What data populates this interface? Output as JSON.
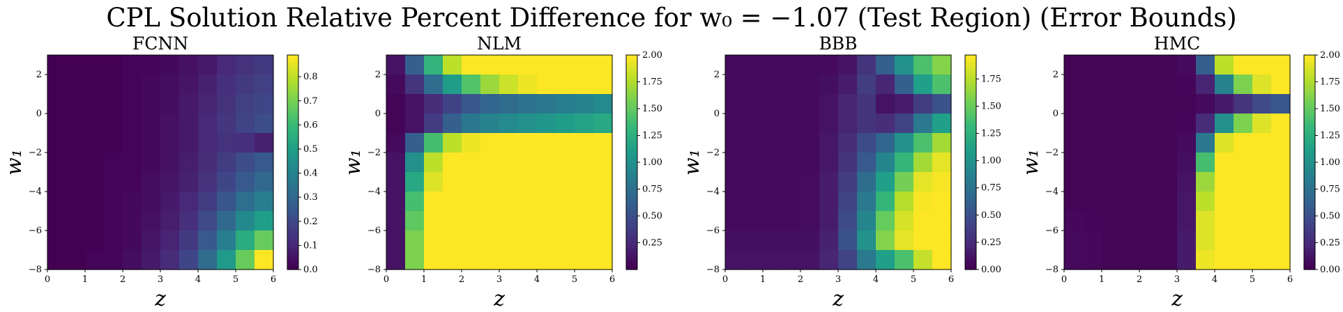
{
  "figure": {
    "title": "CPL Solution Relative Percent Difference for w₀ = −1.07 (Test Region) (Error Bounds)"
  },
  "colormap": [
    "#440154",
    "#482878",
    "#3e4989",
    "#31688e",
    "#26828e",
    "#1f9e89",
    "#35b779",
    "#6ece58",
    "#b5de2b",
    "#fde725"
  ],
  "chart_data": [
    {
      "type": "heatmap",
      "title": "FCNN",
      "xlabel": "z",
      "ylabel": "w₁",
      "xlim": [
        0,
        6
      ],
      "ylim": [
        -8,
        3
      ],
      "xticks": [
        "0",
        "1",
        "2",
        "3",
        "4",
        "5",
        "6"
      ],
      "yticks": [
        "2",
        "0",
        "−2",
        "−4",
        "−6",
        "−8"
      ],
      "colorbar": {
        "min": 0,
        "max": 0.89,
        "ticks": [
          "0.0",
          "0.1",
          "0.2",
          "0.3",
          "0.4",
          "0.5",
          "0.6",
          "0.7",
          "0.8"
        ]
      },
      "values": [
        [
          0.0,
          0.0,
          0.0,
          0.0,
          0.01,
          0.01,
          0.02,
          0.04,
          0.06,
          0.1,
          0.13,
          0.15
        ],
        [
          0.0,
          0.0,
          0.0,
          0.0,
          0.01,
          0.02,
          0.03,
          0.05,
          0.08,
          0.12,
          0.15,
          0.17
        ],
        [
          0.0,
          0.0,
          0.0,
          0.0,
          0.01,
          0.02,
          0.03,
          0.06,
          0.09,
          0.13,
          0.17,
          0.19
        ],
        [
          0.0,
          0.0,
          0.0,
          0.0,
          0.01,
          0.02,
          0.04,
          0.06,
          0.1,
          0.14,
          0.18,
          0.21
        ],
        [
          0.0,
          0.0,
          0.0,
          0.0,
          0.01,
          0.02,
          0.04,
          0.06,
          0.1,
          0.13,
          0.12,
          0.08
        ],
        [
          0.0,
          0.0,
          0.0,
          0.01,
          0.01,
          0.02,
          0.04,
          0.07,
          0.11,
          0.16,
          0.21,
          0.25
        ],
        [
          0.0,
          0.0,
          0.0,
          0.01,
          0.01,
          0.03,
          0.05,
          0.08,
          0.13,
          0.19,
          0.25,
          0.3
        ],
        [
          0.0,
          0.0,
          0.0,
          0.01,
          0.02,
          0.03,
          0.06,
          0.1,
          0.16,
          0.24,
          0.32,
          0.38
        ],
        [
          0.0,
          0.0,
          0.0,
          0.01,
          0.02,
          0.04,
          0.07,
          0.12,
          0.2,
          0.3,
          0.42,
          0.5
        ],
        [
          0.0,
          0.0,
          0.0,
          0.01,
          0.02,
          0.05,
          0.09,
          0.15,
          0.25,
          0.38,
          0.55,
          0.68
        ],
        [
          0.0,
          0.0,
          0.01,
          0.01,
          0.03,
          0.06,
          0.11,
          0.19,
          0.31,
          0.48,
          0.68,
          0.89
        ]
      ]
    },
    {
      "type": "heatmap",
      "title": "NLM",
      "xlabel": "z",
      "ylabel": "w₁",
      "xlim": [
        0,
        6
      ],
      "ylim": [
        -8,
        3
      ],
      "xticks": [
        "0",
        "1",
        "2",
        "3",
        "4",
        "5",
        "6"
      ],
      "yticks": [
        "2",
        "0",
        "−2",
        "−4",
        "−6",
        "−8"
      ],
      "colorbar": {
        "min": 0,
        "max": 2.0,
        "ticks": [
          "0.25",
          "0.50",
          "0.75",
          "1.00",
          "1.25",
          "1.50",
          "1.75",
          "2.00"
        ]
      },
      "values": [
        [
          0.1,
          0.6,
          1.3,
          1.8,
          2.0,
          2.0,
          2.0,
          2.0,
          2.0,
          2.0,
          2.0,
          2.0
        ],
        [
          0.05,
          0.3,
          0.7,
          1.1,
          1.45,
          1.7,
          1.85,
          1.95,
          2.0,
          2.0,
          2.0,
          2.0
        ],
        [
          0.02,
          0.1,
          0.25,
          0.4,
          0.55,
          0.65,
          0.7,
          0.75,
          0.8,
          0.85,
          0.9,
          0.95
        ],
        [
          0.02,
          0.1,
          0.35,
          0.6,
          0.8,
          0.9,
          0.95,
          1.0,
          1.05,
          1.1,
          1.15,
          1.2
        ],
        [
          0.05,
          0.6,
          1.4,
          1.8,
          1.95,
          2.0,
          2.0,
          2.0,
          2.0,
          2.0,
          2.0,
          2.0
        ],
        [
          0.1,
          1.0,
          1.8,
          2.0,
          2.0,
          2.0,
          2.0,
          2.0,
          2.0,
          2.0,
          2.0,
          2.0
        ],
        [
          0.1,
          1.2,
          1.9,
          2.0,
          2.0,
          2.0,
          2.0,
          2.0,
          2.0,
          2.0,
          2.0,
          2.0
        ],
        [
          0.1,
          1.4,
          2.0,
          2.0,
          2.0,
          2.0,
          2.0,
          2.0,
          2.0,
          2.0,
          2.0,
          2.0
        ],
        [
          0.1,
          1.5,
          2.0,
          2.0,
          2.0,
          2.0,
          2.0,
          2.0,
          2.0,
          2.0,
          2.0,
          2.0
        ],
        [
          0.1,
          1.6,
          2.0,
          2.0,
          2.0,
          2.0,
          2.0,
          2.0,
          2.0,
          2.0,
          2.0,
          2.0
        ],
        [
          0.1,
          1.6,
          2.0,
          2.0,
          2.0,
          2.0,
          2.0,
          2.0,
          2.0,
          2.0,
          2.0,
          2.0
        ]
      ]
    },
    {
      "type": "heatmap",
      "title": "BBB",
      "xlabel": "z",
      "ylabel": "w₁",
      "xlim": [
        0,
        6
      ],
      "ylim": [
        -8,
        3
      ],
      "xticks": [
        "0",
        "1",
        "2",
        "3",
        "4",
        "5",
        "6"
      ],
      "yticks": [
        "2",
        "0",
        "−2",
        "−4",
        "−6",
        "−8"
      ],
      "colorbar": {
        "min": 0,
        "max": 1.97,
        "ticks": [
          "0.00",
          "0.25",
          "0.50",
          "0.75",
          "1.00",
          "1.25",
          "1.50",
          "1.75"
        ]
      },
      "values": [
        [
          0.05,
          0.05,
          0.05,
          0.05,
          0.05,
          0.05,
          0.1,
          0.3,
          0.6,
          1.0,
          1.4,
          1.6
        ],
        [
          0.05,
          0.05,
          0.05,
          0.05,
          0.05,
          0.08,
          0.15,
          0.35,
          0.2,
          0.6,
          1.1,
          1.4
        ],
        [
          0.05,
          0.05,
          0.05,
          0.05,
          0.05,
          0.1,
          0.2,
          0.3,
          0.1,
          0.15,
          0.35,
          0.5
        ],
        [
          0.05,
          0.05,
          0.05,
          0.05,
          0.05,
          0.1,
          0.2,
          0.3,
          0.25,
          0.4,
          0.8,
          1.1
        ],
        [
          0.05,
          0.05,
          0.05,
          0.05,
          0.05,
          0.12,
          0.25,
          0.45,
          0.65,
          1.0,
          1.4,
          1.7
        ],
        [
          0.05,
          0.05,
          0.05,
          0.05,
          0.05,
          0.12,
          0.3,
          0.55,
          0.9,
          1.3,
          1.7,
          1.9
        ],
        [
          0.05,
          0.05,
          0.05,
          0.05,
          0.06,
          0.15,
          0.35,
          0.7,
          1.1,
          1.55,
          1.9,
          1.95
        ],
        [
          0.05,
          0.05,
          0.05,
          0.05,
          0.06,
          0.15,
          0.4,
          0.8,
          1.3,
          1.75,
          1.95,
          1.97
        ],
        [
          0.05,
          0.05,
          0.05,
          0.05,
          0.06,
          0.15,
          0.45,
          0.9,
          1.5,
          1.85,
          1.97,
          1.97
        ],
        [
          0.08,
          0.08,
          0.08,
          0.08,
          0.08,
          0.18,
          0.5,
          1.0,
          1.6,
          1.9,
          1.97,
          1.97
        ],
        [
          0.1,
          0.1,
          0.1,
          0.1,
          0.1,
          0.2,
          0.4,
          0.8,
          1.1,
          1.4,
          1.8,
          1.97
        ]
      ]
    },
    {
      "type": "heatmap",
      "title": "HMC",
      "xlabel": "z",
      "ylabel": "w₁",
      "xlim": [
        0,
        6
      ],
      "ylim": [
        -8,
        3
      ],
      "xticks": [
        "0",
        "1",
        "2",
        "3",
        "4",
        "5",
        "6"
      ],
      "yticks": [
        "2",
        "0",
        "−2",
        "−4",
        "−6",
        "−8"
      ],
      "colorbar": {
        "min": 0,
        "max": 2.0,
        "ticks": [
          "0.00",
          "0.25",
          "0.50",
          "0.75",
          "1.00",
          "1.25",
          "1.50",
          "1.75",
          "2.00"
        ]
      },
      "values": [
        [
          0.02,
          0.02,
          0.02,
          0.02,
          0.02,
          0.02,
          0.05,
          0.6,
          1.8,
          2.0,
          2.0,
          2.0
        ],
        [
          0.02,
          0.02,
          0.02,
          0.02,
          0.02,
          0.02,
          0.03,
          0.2,
          0.9,
          1.6,
          1.9,
          2.0
        ],
        [
          0.02,
          0.02,
          0.02,
          0.02,
          0.02,
          0.02,
          0.02,
          0.05,
          0.15,
          0.3,
          0.45,
          0.55
        ],
        [
          0.02,
          0.02,
          0.02,
          0.02,
          0.02,
          0.02,
          0.03,
          0.25,
          1.0,
          1.6,
          1.9,
          2.0
        ],
        [
          0.02,
          0.02,
          0.02,
          0.02,
          0.02,
          0.02,
          0.05,
          0.8,
          1.9,
          2.0,
          2.0,
          2.0
        ],
        [
          0.02,
          0.02,
          0.02,
          0.02,
          0.02,
          0.02,
          0.08,
          1.4,
          2.0,
          2.0,
          2.0,
          2.0
        ],
        [
          0.02,
          0.02,
          0.02,
          0.02,
          0.02,
          0.02,
          0.1,
          1.7,
          2.0,
          2.0,
          2.0,
          2.0
        ],
        [
          0.02,
          0.02,
          0.02,
          0.02,
          0.02,
          0.02,
          0.12,
          1.8,
          2.0,
          2.0,
          2.0,
          2.0
        ],
        [
          0.04,
          0.03,
          0.02,
          0.02,
          0.02,
          0.02,
          0.12,
          1.9,
          2.0,
          2.0,
          2.0,
          2.0
        ],
        [
          0.05,
          0.04,
          0.02,
          0.02,
          0.02,
          0.02,
          0.15,
          1.9,
          2.0,
          2.0,
          2.0,
          2.0
        ],
        [
          0.05,
          0.04,
          0.02,
          0.02,
          0.02,
          0.02,
          0.15,
          1.95,
          2.0,
          2.0,
          2.0,
          2.0
        ]
      ]
    }
  ]
}
